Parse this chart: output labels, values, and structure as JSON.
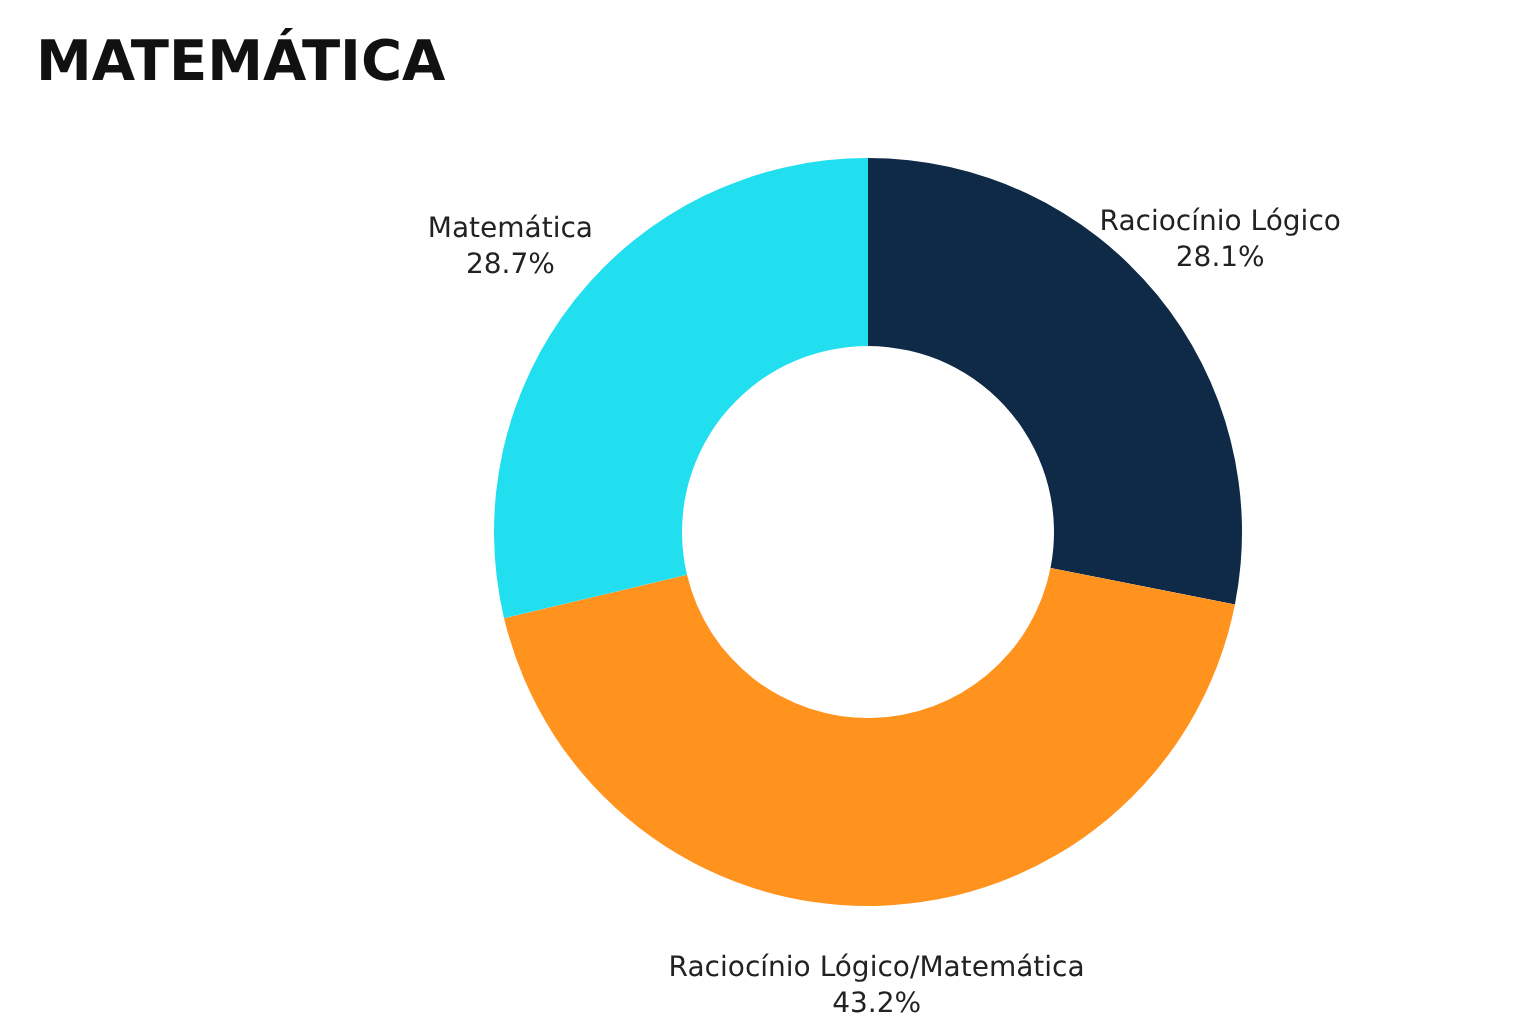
{
  "chart_data": {
    "type": "donut",
    "title": "MATEMÁTICA",
    "categories": [
      "Raciocínio Lógico",
      "Raciocínio Lógico/Matemática",
      "Matemática"
    ],
    "values": [
      28.1,
      43.2,
      28.7
    ],
    "value_labels": [
      "28.1%",
      "43.2%",
      "28.7%"
    ],
    "colors": [
      "#0f2a47",
      "#ff931e",
      "#22dff0"
    ]
  }
}
